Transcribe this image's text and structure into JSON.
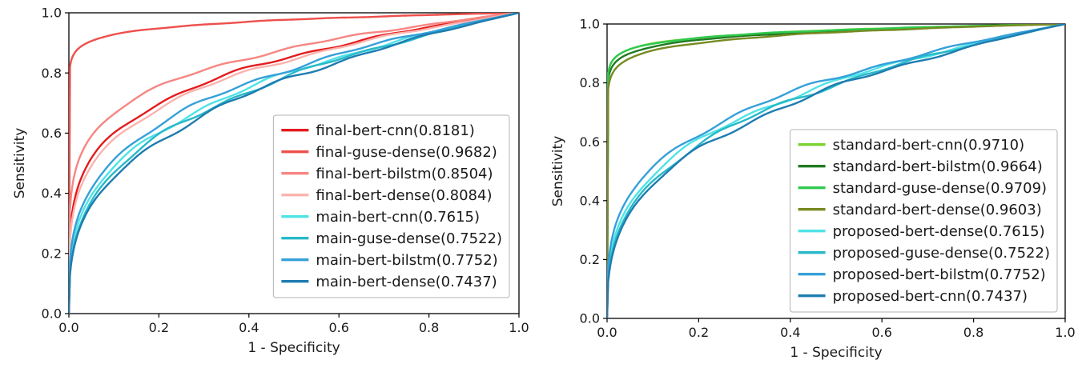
{
  "figure": {
    "background": "#ffffff",
    "text_color": "#1a1a1a"
  },
  "chart_data": [
    {
      "id": "left",
      "type": "line",
      "title": "",
      "xlabel": "1 - Specificity",
      "ylabel": "Sensitivity",
      "xlim": [
        0.0,
        1.0
      ],
      "ylim": [
        0.0,
        1.0
      ],
      "xticks": [
        0.0,
        0.2,
        0.4,
        0.6,
        0.8,
        1.0
      ],
      "yticks": [
        0.0,
        0.2,
        0.4,
        0.6,
        0.8,
        1.0
      ],
      "grid": false,
      "legend_position": "lower right",
      "series": [
        {
          "name": "final-bert-cnn",
          "auc": 0.8181,
          "label": "final-bert-cnn(0.8181)",
          "color": "#e41b1e"
        },
        {
          "name": "final-guse-dense",
          "auc": 0.9682,
          "label": "final-guse-dense(0.9682)",
          "color": "#ee4f4c"
        },
        {
          "name": "final-bert-bilstm",
          "auc": 0.8504,
          "label": "final-bert-bilstm(0.8504)",
          "color": "#f68682"
        },
        {
          "name": "final-bert-dense",
          "auc": 0.8084,
          "label": "final-bert-dense(0.8084)",
          "color": "#fab3ae"
        },
        {
          "name": "main-bert-cnn",
          "auc": 0.7615,
          "label": "main-bert-cnn(0.7615)",
          "color": "#4fe3e6"
        },
        {
          "name": "main-guse-dense",
          "auc": 0.7522,
          "label": "main-guse-dense(0.7522)",
          "color": "#27b9c9"
        },
        {
          "name": "main-bert-bilstm",
          "auc": 0.7752,
          "label": "main-bert-bilstm(0.7752)",
          "color": "#35a0d9"
        },
        {
          "name": "main-bert-dense",
          "auc": 0.7437,
          "label": "main-bert-dense(0.7437)",
          "color": "#1e7cb0"
        }
      ]
    },
    {
      "id": "right",
      "type": "line",
      "title": "",
      "xlabel": "1 - Specificity",
      "ylabel": "Sensitivity",
      "xlim": [
        0.0,
        1.0
      ],
      "ylim": [
        0.0,
        1.0
      ],
      "xticks": [
        0.0,
        0.2,
        0.4,
        0.6,
        0.8,
        1.0
      ],
      "yticks": [
        0.0,
        0.2,
        0.4,
        0.6,
        0.8,
        1.0
      ],
      "grid": false,
      "legend_position": "lower right",
      "series": [
        {
          "name": "standard-bert-cnn",
          "auc": 0.971,
          "label": "standard-bert-cnn(0.9710)",
          "color": "#7bd232"
        },
        {
          "name": "standard-bert-bilstm",
          "auc": 0.9664,
          "label": "standard-bert-bilstm(0.9664)",
          "color": "#217a21"
        },
        {
          "name": "standard-guse-dense",
          "auc": 0.9709,
          "label": "standard-guse-dense(0.9709)",
          "color": "#2fc94e"
        },
        {
          "name": "standard-bert-dense",
          "auc": 0.9603,
          "label": "standard-bert-dense(0.9603)",
          "color": "#778a21"
        },
        {
          "name": "proposed-bert-dense",
          "auc": 0.7615,
          "label": "proposed-bert-dense(0.7615)",
          "color": "#4fe3e6"
        },
        {
          "name": "proposed-guse-dense",
          "auc": 0.7522,
          "label": "proposed-guse-dense(0.7522)",
          "color": "#27b9c9"
        },
        {
          "name": "proposed-bert-bilstm",
          "auc": 0.7752,
          "label": "proposed-bert-bilstm(0.7752)",
          "color": "#35a0d9"
        },
        {
          "name": "proposed-bert-cnn",
          "auc": 0.7437,
          "label": "proposed-bert-cnn(0.7437)",
          "color": "#1e7cb0"
        }
      ]
    }
  ]
}
